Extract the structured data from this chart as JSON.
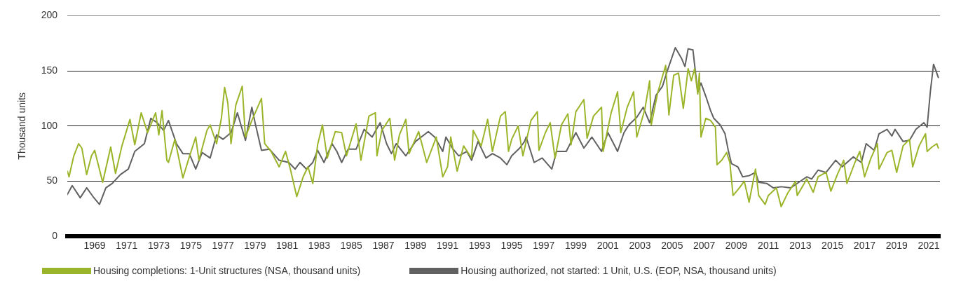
{
  "chart_data": {
    "type": "line",
    "ylabel": "Thousand units",
    "xlim": [
      1967.3,
      2021.7
    ],
    "xticks": [
      1969,
      1971,
      1973,
      1975,
      1977,
      1979,
      1981,
      1983,
      1985,
      1987,
      1989,
      1991,
      1993,
      1995,
      1997,
      1999,
      2001,
      2003,
      2005,
      2007,
      2009,
      2011,
      2013,
      2015,
      2017,
      2019,
      2021
    ],
    "ylim": [
      0,
      200
    ],
    "yticks": [
      0,
      50,
      100,
      150,
      200
    ],
    "grid": "y",
    "legend": "bottom",
    "series": [
      {
        "name": "Housing completions: 1-Unit structures (NSA, thousand units)",
        "color": "#9bb52a",
        "x": [
          1967.3,
          1967.4,
          1967.7,
          1968.0,
          1968.2,
          1968.5,
          1968.8,
          1969.0,
          1969.5,
          1970.0,
          1970.3,
          1970.7,
          1971.2,
          1971.5,
          1971.9,
          1972.3,
          1972.8,
          1973.0,
          1973.2,
          1973.5,
          1973.6,
          1974.0,
          1974.5,
          1974.9,
          1975.3,
          1975.5,
          1976.0,
          1976.2,
          1976.6,
          1976.9,
          1977.1,
          1977.3,
          1977.5,
          1977.8,
          1978.2,
          1978.4,
          1978.8,
          1979.1,
          1979.4,
          1979.6,
          1980.0,
          1980.5,
          1980.9,
          1981.2,
          1981.6,
          1982.0,
          1982.3,
          1982.6,
          1982.9,
          1983.2,
          1983.5,
          1984.0,
          1984.4,
          1984.7,
          1985.3,
          1985.6,
          1986.1,
          1986.5,
          1986.6,
          1986.9,
          1987.4,
          1987.7,
          1988.0,
          1988.4,
          1988.6,
          1989.2,
          1989.7,
          1990.3,
          1990.7,
          1991.0,
          1991.2,
          1991.6,
          1992.0,
          1992.5,
          1992.6,
          1993.1,
          1993.5,
          1993.8,
          1994.3,
          1994.6,
          1994.8,
          1995.0,
          1995.4,
          1995.7,
          1996.2,
          1996.6,
          1996.7,
          1997.1,
          1997.4,
          1997.7,
          1998.1,
          1998.5,
          1998.7,
          1999.0,
          1999.5,
          1999.7,
          2000.1,
          2000.6,
          2000.7,
          2001.2,
          2001.6,
          2001.8,
          2002.2,
          2002.6,
          2002.8,
          2003.3,
          2003.6,
          2003.7,
          2004.1,
          2004.6,
          2004.8,
          2005.1,
          2005.4,
          2005.7,
          2006.0,
          2006.2,
          2006.4,
          2006.6,
          2006.7,
          2006.8,
          2007.1,
          2007.4,
          2007.7,
          2007.8,
          2008.1,
          2008.4,
          2008.6,
          2008.8,
          2009.2,
          2009.5,
          2009.8,
          2010.2,
          2010.4,
          2010.8,
          2011.0,
          2011.5,
          2011.8,
          2012.2,
          2012.7,
          2012.8,
          2013.4,
          2013.8,
          2014.1,
          2014.6,
          2014.9,
          2015.3,
          2015.7,
          2015.9,
          2016.4,
          2016.7,
          2017.0,
          2017.4,
          2017.8,
          2017.9,
          2018.4,
          2018.7,
          2019.0,
          2019.4,
          2019.8,
          2020.0,
          2020.4,
          2020.8,
          2020.9,
          2021.2,
          2021.5,
          2021.6
        ],
        "values": [
          59,
          54,
          73,
          84,
          80,
          56,
          73,
          78,
          49,
          81,
          57,
          82,
          106,
          83,
          112,
          94,
          112,
          92,
          114,
          69,
          67,
          88,
          53,
          72,
          90,
          69,
          96,
          101,
          84,
          107,
          135,
          121,
          84,
          119,
          136,
          90,
          105,
          115,
          125,
          84,
          77,
          63,
          77,
          61,
          36,
          54,
          63,
          48,
          83,
          101,
          71,
          95,
          94,
          73,
          102,
          69,
          109,
          112,
          73,
          96,
          107,
          69,
          92,
          106,
          75,
          95,
          67,
          90,
          54,
          63,
          90,
          59,
          82,
          71,
          96,
          82,
          106,
          77,
          109,
          113,
          77,
          88,
          100,
          73,
          105,
          113,
          78,
          94,
          103,
          71,
          101,
          111,
          83,
          113,
          124,
          89,
          109,
          117,
          77,
          112,
          131,
          94,
          117,
          131,
          90,
          115,
          141,
          101,
          130,
          155,
          110,
          146,
          148,
          116,
          152,
          141,
          152,
          129,
          148,
          90,
          107,
          105,
          99,
          65,
          69,
          76,
          67,
          37,
          44,
          50,
          31,
          61,
          37,
          29,
          37,
          44,
          27,
          39,
          50,
          37,
          52,
          40,
          54,
          58,
          41,
          56,
          69,
          48,
          67,
          77,
          54,
          71,
          84,
          61,
          76,
          78,
          58,
          82,
          88,
          63,
          82,
          93,
          77,
          81,
          84,
          80
        ]
      },
      {
        "name": "Housing authorized, not started: 1 Unit, U.S. (EOP, NSA, thousand units)",
        "color": "#616161",
        "x": [
          1967.3,
          1967.6,
          1968.1,
          1968.5,
          1968.9,
          1969.3,
          1969.7,
          1970.1,
          1970.6,
          1971.1,
          1971.5,
          1972.1,
          1972.5,
          1972.9,
          1973.3,
          1973.6,
          1974.1,
          1974.5,
          1974.9,
          1975.3,
          1975.7,
          1976.2,
          1976.6,
          1977.0,
          1977.5,
          1977.9,
          1978.4,
          1978.8,
          1979.0,
          1979.4,
          1979.9,
          1980.5,
          1981.1,
          1981.5,
          1981.8,
          1982.2,
          1982.6,
          1982.9,
          1983.3,
          1983.8,
          1984.1,
          1984.4,
          1984.8,
          1985.3,
          1985.8,
          1986.3,
          1986.8,
          1987.2,
          1987.5,
          1987.8,
          1988.4,
          1989.0,
          1989.8,
          1990.2,
          1990.7,
          1990.9,
          1991.3,
          1991.7,
          1992.2,
          1992.5,
          1992.9,
          1993.4,
          1993.8,
          1994.3,
          1994.7,
          1995.0,
          1995.5,
          1995.8,
          1995.9,
          1996.4,
          1996.9,
          1997.5,
          1997.8,
          1998.4,
          1999.0,
          1999.5,
          2000.0,
          2000.6,
          2001.0,
          2001.6,
          2002.0,
          2002.3,
          2002.8,
          2003.2,
          2003.6,
          2004.0,
          2004.4,
          2004.7,
          2005.2,
          2005.6,
          2005.8,
          2006.0,
          2006.3,
          2006.4,
          2006.6,
          2006.8,
          2007.1,
          2007.4,
          2007.6,
          2008.0,
          2008.3,
          2008.5,
          2008.7,
          2009.1,
          2009.4,
          2009.8,
          2010.2,
          2010.4,
          2010.9,
          2011.3,
          2011.8,
          2012.4,
          2013.0,
          2013.4,
          2013.7,
          2014.1,
          2014.6,
          2015.2,
          2015.6,
          2016.3,
          2016.8,
          2017.1,
          2017.6,
          2017.9,
          2018.4,
          2018.7,
          2018.9,
          2019.4,
          2019.8,
          2020.2,
          2020.7,
          2020.9,
          2021.1,
          2021.3,
          2021.6
        ],
        "values": [
          38,
          46,
          35,
          44,
          36,
          29,
          44,
          48,
          56,
          61,
          77,
          84,
          107,
          103,
          96,
          105,
          84,
          75,
          75,
          61,
          76,
          71,
          92,
          88,
          94,
          112,
          87,
          117,
          103,
          78,
          79,
          69,
          67,
          61,
          67,
          61,
          67,
          78,
          67,
          84,
          77,
          67,
          79,
          79,
          97,
          90,
          103,
          84,
          75,
          84,
          73,
          86,
          95,
          90,
          77,
          90,
          80,
          73,
          77,
          69,
          86,
          71,
          75,
          71,
          65,
          73,
          80,
          86,
          90,
          67,
          71,
          61,
          77,
          77,
          94,
          80,
          90,
          77,
          94,
          77,
          94,
          101,
          108,
          117,
          103,
          128,
          136,
          150,
          171,
          161,
          154,
          170,
          169,
          156,
          131,
          139,
          127,
          114,
          107,
          101,
          93,
          78,
          66,
          63,
          54,
          55,
          58,
          49,
          48,
          44,
          45,
          44,
          50,
          54,
          52,
          60,
          58,
          69,
          63,
          72,
          67,
          84,
          78,
          93,
          97,
          91,
          97,
          86,
          87,
          97,
          103,
          99,
          131,
          156,
          144
        ]
      }
    ]
  }
}
